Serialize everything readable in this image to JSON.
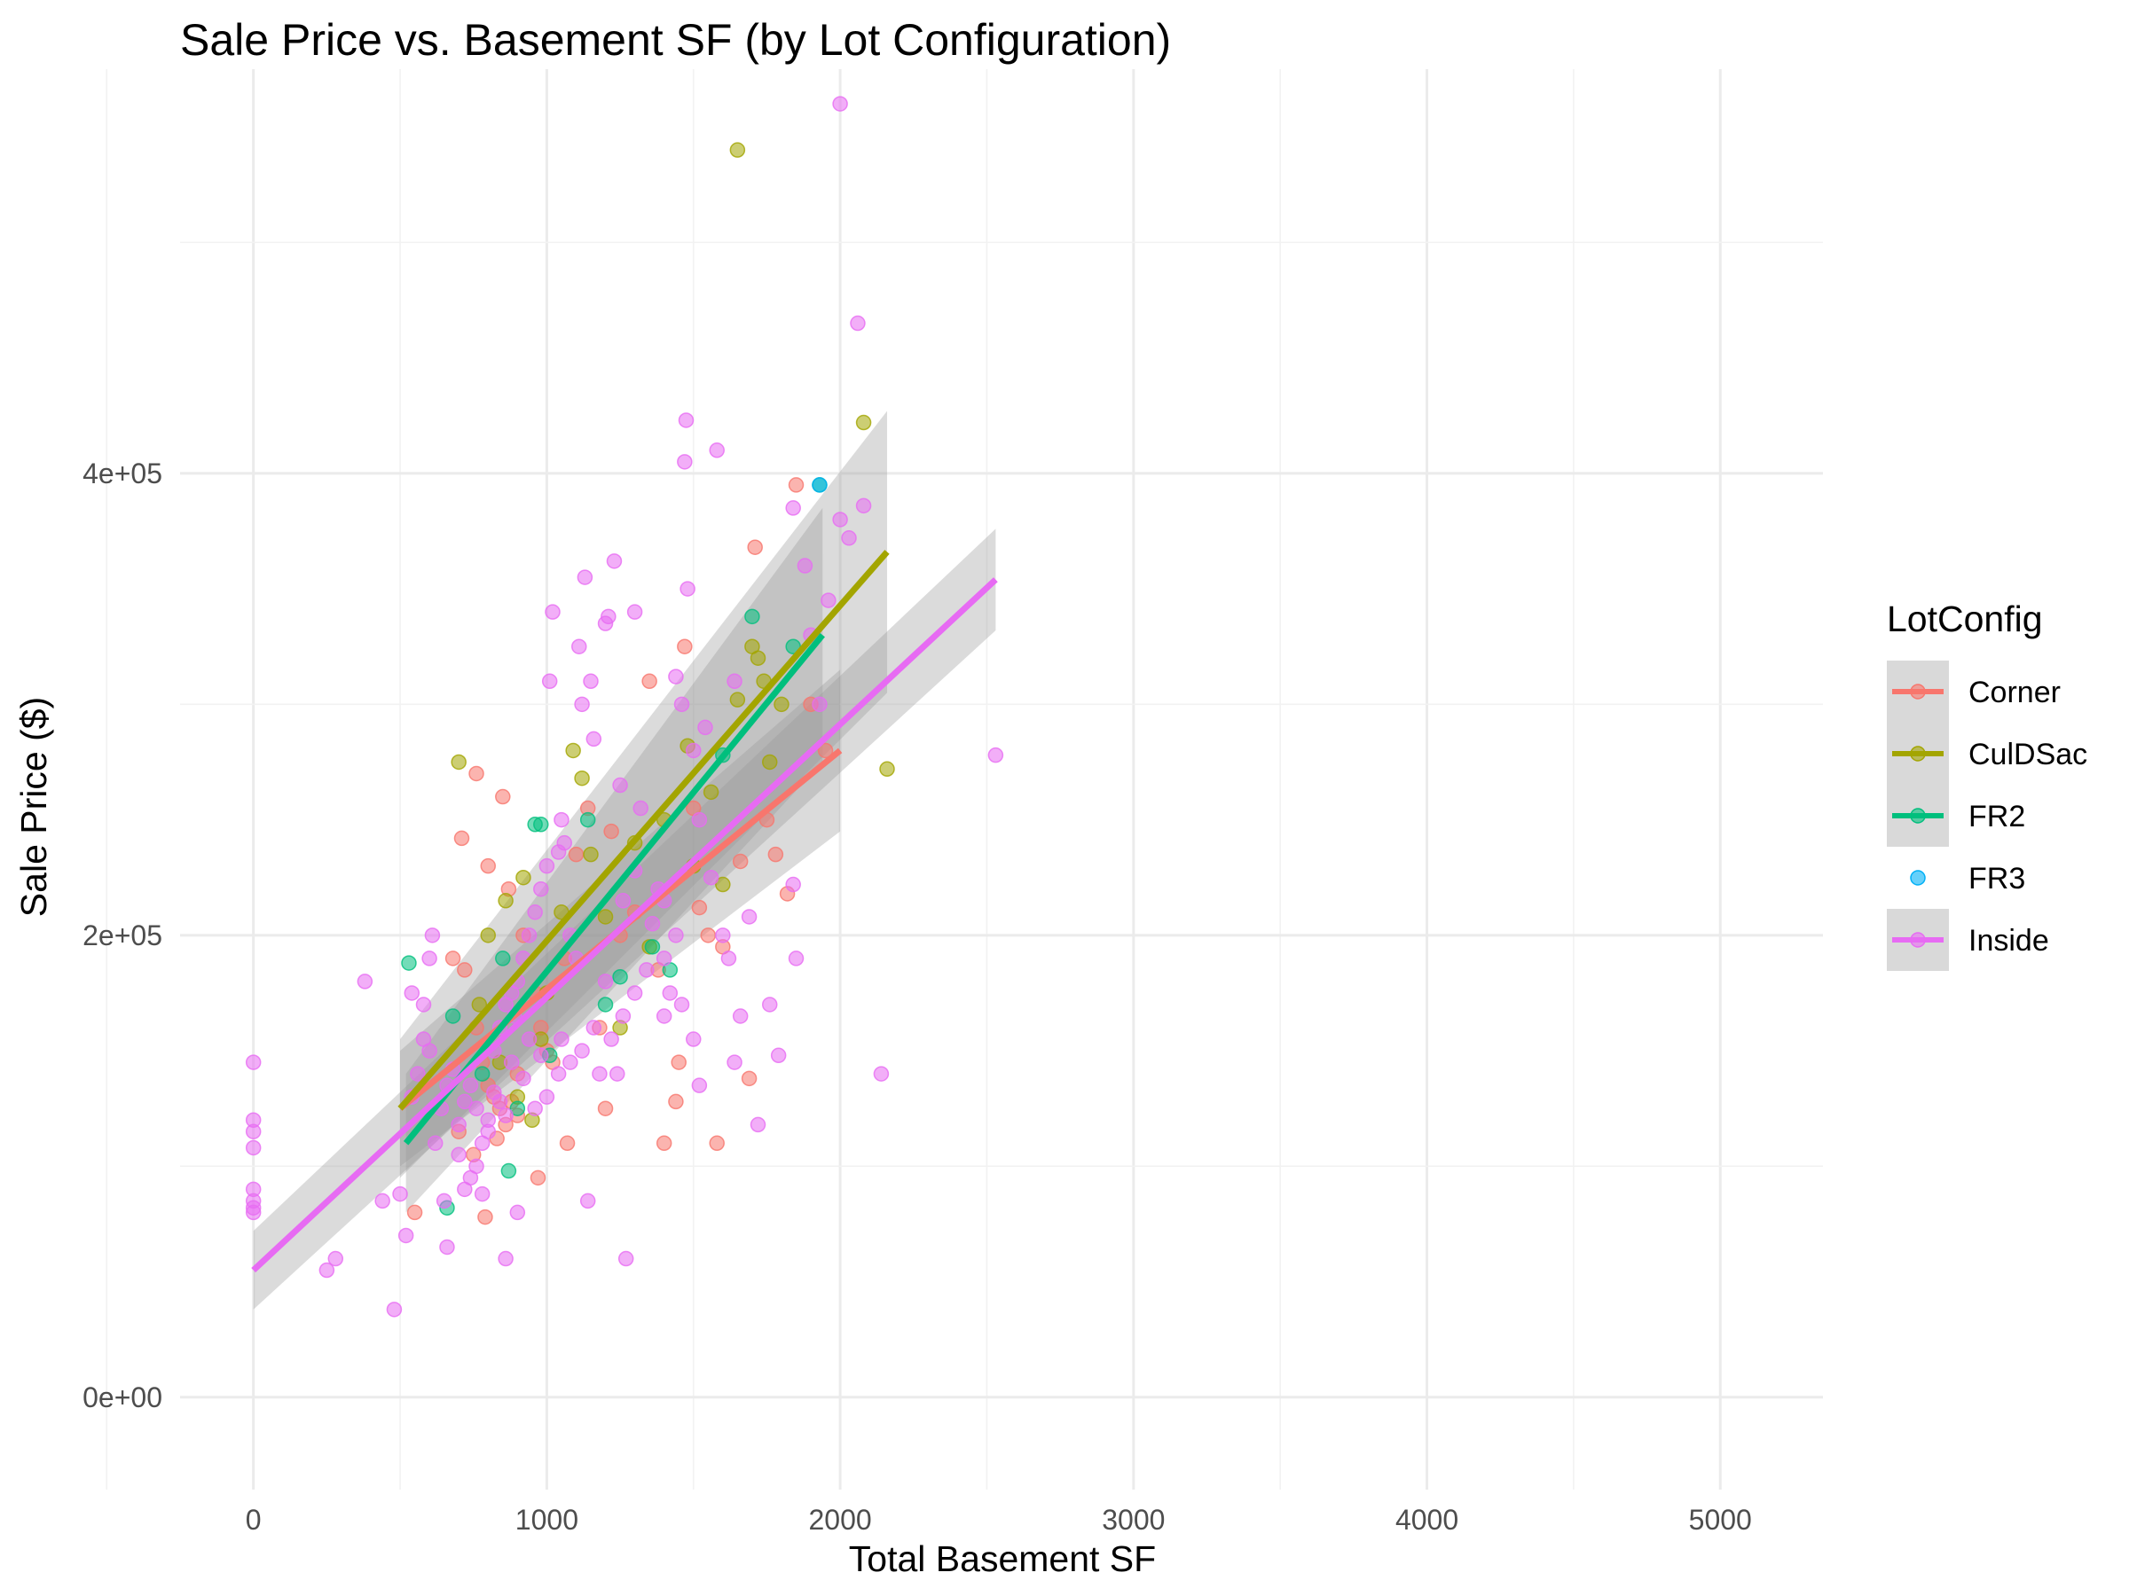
{
  "chart_data": {
    "type": "scatter",
    "title": "Sale Price vs. Basement SF (by Lot Configuration)",
    "xlabel": "Total Basement SF",
    "ylabel": "Sale Price ($)",
    "xlim": [
      -250,
      5350
    ],
    "ylim": [
      -40000,
      575000
    ],
    "x_ticks": [
      0,
      1000,
      2000,
      3000,
      4000,
      5000
    ],
    "x_tick_labels": [
      "0",
      "1000",
      "2000",
      "3000",
      "4000",
      "5000"
    ],
    "y_ticks": [
      0,
      200000,
      400000
    ],
    "y_tick_labels": [
      "0e+00",
      "2e+05",
      "4e+05"
    ],
    "grid": true,
    "legend": {
      "title": "LotConfig",
      "position": "right"
    },
    "series": [
      {
        "name": "Corner",
        "color": "#F8766D",
        "fit": {
          "x": [
            500,
            2000
          ],
          "y": [
            125000,
            280000
          ],
          "ci": [
            [
              100000,
              150000
            ],
            [
              245000,
              315000
            ]
          ]
        },
        "points": [
          [
            680,
            190000
          ],
          [
            720,
            185000
          ],
          [
            760,
            160000
          ],
          [
            780,
            145000
          ],
          [
            800,
            135000
          ],
          [
            820,
            130000
          ],
          [
            840,
            125000
          ],
          [
            860,
            118000
          ],
          [
            880,
            128000
          ],
          [
            900,
            140000
          ],
          [
            760,
            270000
          ],
          [
            800,
            230000
          ],
          [
            850,
            260000
          ],
          [
            710,
            242000
          ],
          [
            870,
            220000
          ],
          [
            920,
            200000
          ],
          [
            960,
            175000
          ],
          [
            980,
            160000
          ],
          [
            1000,
            150000
          ],
          [
            1020,
            145000
          ],
          [
            1060,
            190000
          ],
          [
            1100,
            235000
          ],
          [
            1140,
            255000
          ],
          [
            1180,
            160000
          ],
          [
            1200,
            125000
          ],
          [
            1220,
            245000
          ],
          [
            1300,
            210000
          ],
          [
            1350,
            310000
          ],
          [
            1400,
            110000
          ],
          [
            1440,
            128000
          ],
          [
            1470,
            325000
          ],
          [
            1500,
            255000
          ],
          [
            1520,
            212000
          ],
          [
            1580,
            110000
          ],
          [
            1600,
            195000
          ],
          [
            1660,
            232000
          ],
          [
            1690,
            138000
          ],
          [
            1710,
            368000
          ],
          [
            1780,
            235000
          ],
          [
            1820,
            218000
          ],
          [
            1850,
            395000
          ],
          [
            1900,
            300000
          ],
          [
            550,
            80000
          ],
          [
            790,
            78000
          ],
          [
            970,
            95000
          ],
          [
            1070,
            110000
          ],
          [
            700,
            115000
          ],
          [
            750,
            105000
          ],
          [
            830,
            112000
          ],
          [
            900,
            122000
          ],
          [
            1250,
            200000
          ],
          [
            1380,
            185000
          ],
          [
            1450,
            145000
          ],
          [
            1550,
            200000
          ],
          [
            1750,
            250000
          ],
          [
            1950,
            280000
          ]
        ]
      },
      {
        "name": "CulDSac",
        "color": "#A3A500",
        "fit": {
          "x": [
            500,
            2160
          ],
          "y": [
            125000,
            366000
          ],
          "ci": [
            [
              95000,
              155000
            ],
            [
              305000,
              427000
            ]
          ]
        },
        "points": [
          [
            700,
            275000
          ],
          [
            1650,
            540000
          ],
          [
            2080,
            422000
          ],
          [
            2160,
            272000
          ],
          [
            800,
            200000
          ],
          [
            860,
            215000
          ],
          [
            920,
            225000
          ],
          [
            980,
            155000
          ],
          [
            1090,
            280000
          ],
          [
            1120,
            268000
          ],
          [
            1200,
            208000
          ],
          [
            1250,
            160000
          ],
          [
            1300,
            240000
          ],
          [
            1350,
            195000
          ],
          [
            1480,
            282000
          ],
          [
            1560,
            262000
          ],
          [
            1600,
            222000
          ],
          [
            1650,
            302000
          ],
          [
            1720,
            320000
          ],
          [
            1740,
            310000
          ],
          [
            1760,
            275000
          ],
          [
            1800,
            300000
          ],
          [
            900,
            130000
          ],
          [
            950,
            120000
          ],
          [
            1000,
            175000
          ],
          [
            1150,
            235000
          ],
          [
            1400,
            250000
          ],
          [
            1500,
            230000
          ],
          [
            1050,
            210000
          ],
          [
            1700,
            325000
          ],
          [
            770,
            170000
          ],
          [
            840,
            145000
          ]
        ]
      },
      {
        "name": "FR2",
        "color": "#00BF7D",
        "fit": {
          "x": [
            520,
            1940
          ],
          "y": [
            110000,
            330000
          ],
          "ci": [
            [
              80000,
              140000
            ],
            [
              275000,
              385000
            ]
          ]
        },
        "points": [
          [
            530,
            188000
          ],
          [
            660,
            82000
          ],
          [
            680,
            165000
          ],
          [
            850,
            190000
          ],
          [
            870,
            98000
          ],
          [
            900,
            125000
          ],
          [
            960,
            248000
          ],
          [
            980,
            248000
          ],
          [
            1010,
            148000
          ],
          [
            1140,
            250000
          ],
          [
            1200,
            170000
          ],
          [
            1250,
            182000
          ],
          [
            1420,
            185000
          ],
          [
            1600,
            278000
          ],
          [
            1700,
            338000
          ],
          [
            1840,
            325000
          ],
          [
            1930,
            395000
          ],
          [
            1360,
            195000
          ],
          [
            780,
            140000
          ]
        ]
      },
      {
        "name": "FR3",
        "color": "#00B0F6",
        "fit": null,
        "points": [
          [
            1930,
            395000
          ]
        ]
      },
      {
        "name": "Inside",
        "color": "#E76BF3",
        "fit": {
          "x": [
            0,
            2530
          ],
          "y": [
            55000,
            354000
          ],
          "ci": [
            [
              38000,
              72000
            ],
            [
              332000,
              376000
            ]
          ]
        },
        "points": [
          [
            0,
            145000
          ],
          [
            0,
            120000
          ],
          [
            0,
            115000
          ],
          [
            0,
            108000
          ],
          [
            0,
            90000
          ],
          [
            0,
            85000
          ],
          [
            0,
            82000
          ],
          [
            0,
            80000
          ],
          [
            250,
            55000
          ],
          [
            280,
            60000
          ],
          [
            380,
            180000
          ],
          [
            440,
            85000
          ],
          [
            480,
            38000
          ],
          [
            500,
            88000
          ],
          [
            520,
            70000
          ],
          [
            540,
            175000
          ],
          [
            580,
            170000
          ],
          [
            600,
            190000
          ],
          [
            610,
            200000
          ],
          [
            650,
            85000
          ],
          [
            660,
            65000
          ],
          [
            700,
            105000
          ],
          [
            720,
            90000
          ],
          [
            740,
            95000
          ],
          [
            760,
            100000
          ],
          [
            780,
            88000
          ],
          [
            800,
            115000
          ],
          [
            820,
            150000
          ],
          [
            840,
            160000
          ],
          [
            860,
            170000
          ],
          [
            880,
            175000
          ],
          [
            900,
            180000
          ],
          [
            920,
            190000
          ],
          [
            940,
            200000
          ],
          [
            960,
            210000
          ],
          [
            980,
            220000
          ],
          [
            1000,
            230000
          ],
          [
            1010,
            310000
          ],
          [
            1020,
            340000
          ],
          [
            1050,
            250000
          ],
          [
            1060,
            240000
          ],
          [
            1080,
            200000
          ],
          [
            1100,
            190000
          ],
          [
            1120,
            300000
          ],
          [
            1130,
            355000
          ],
          [
            1150,
            310000
          ],
          [
            1160,
            285000
          ],
          [
            1200,
            335000
          ],
          [
            1210,
            338000
          ],
          [
            1230,
            362000
          ],
          [
            1250,
            265000
          ],
          [
            1270,
            60000
          ],
          [
            1300,
            340000
          ],
          [
            1320,
            255000
          ],
          [
            1380,
            220000
          ],
          [
            1400,
            190000
          ],
          [
            1420,
            175000
          ],
          [
            1440,
            312000
          ],
          [
            1460,
            300000
          ],
          [
            1470,
            405000
          ],
          [
            1475,
            423000
          ],
          [
            1480,
            350000
          ],
          [
            1500,
            280000
          ],
          [
            1520,
            250000
          ],
          [
            1560,
            225000
          ],
          [
            1580,
            410000
          ],
          [
            1600,
            200000
          ],
          [
            1620,
            190000
          ],
          [
            1640,
            145000
          ],
          [
            1660,
            165000
          ],
          [
            1690,
            208000
          ],
          [
            1720,
            118000
          ],
          [
            1760,
            170000
          ],
          [
            1790,
            148000
          ],
          [
            1840,
            385000
          ],
          [
            1850,
            190000
          ],
          [
            1880,
            360000
          ],
          [
            1900,
            330000
          ],
          [
            1930,
            300000
          ],
          [
            1960,
            345000
          ],
          [
            2000,
            380000
          ],
          [
            2030,
            372000
          ],
          [
            2060,
            465000
          ],
          [
            2080,
            386000
          ],
          [
            2140,
            140000
          ],
          [
            2530,
            278000
          ],
          [
            2000,
            560000
          ],
          [
            1840,
            222000
          ],
          [
            1640,
            310000
          ],
          [
            1540,
            290000
          ],
          [
            1110,
            325000
          ],
          [
            1040,
            236000
          ],
          [
            1000,
            130000
          ],
          [
            960,
            125000
          ],
          [
            920,
            138000
          ],
          [
            880,
            145000
          ],
          [
            860,
            122000
          ],
          [
            840,
            128000
          ],
          [
            820,
            132000
          ],
          [
            800,
            120000
          ],
          [
            780,
            110000
          ],
          [
            760,
            125000
          ],
          [
            740,
            135000
          ],
          [
            720,
            128000
          ],
          [
            700,
            118000
          ],
          [
            680,
            142000
          ],
          [
            660,
            135000
          ],
          [
            640,
            125000
          ],
          [
            620,
            110000
          ],
          [
            600,
            150000
          ],
          [
            580,
            155000
          ],
          [
            560,
            140000
          ],
          [
            540,
            130000
          ],
          [
            1180,
            140000
          ],
          [
            1220,
            155000
          ],
          [
            1260,
            165000
          ],
          [
            1300,
            175000
          ],
          [
            1340,
            185000
          ],
          [
            1360,
            205000
          ],
          [
            1400,
            215000
          ],
          [
            1440,
            200000
          ],
          [
            1460,
            170000
          ],
          [
            1500,
            155000
          ],
          [
            1520,
            135000
          ],
          [
            1260,
            215000
          ],
          [
            1200,
            180000
          ],
          [
            1160,
            160000
          ],
          [
            1120,
            150000
          ],
          [
            1080,
            145000
          ],
          [
            1040,
            140000
          ],
          [
            900,
            80000
          ],
          [
            860,
            60000
          ],
          [
            1140,
            85000
          ],
          [
            1240,
            140000
          ],
          [
            1400,
            165000
          ],
          [
            1300,
            228000
          ],
          [
            1050,
            155000
          ],
          [
            980,
            148000
          ],
          [
            940,
            155000
          ],
          [
            890,
            165000
          ]
        ]
      }
    ]
  }
}
